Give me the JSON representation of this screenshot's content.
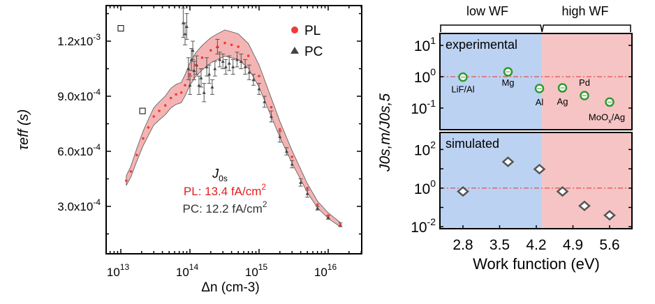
{
  "chart_data": [
    {
      "type": "scatter",
      "xlabel": "Δn (cm-3)",
      "ylabel": "τeff (s)",
      "xscale": "log",
      "xlim": [
        6000000000000.0,
        3e+16
      ],
      "ylim": [
        4e-05,
        0.00139
      ],
      "xticks": [
        {
          "v": 10000000000000.0,
          "label": "13"
        },
        {
          "v": 100000000000000.0,
          "label": "14"
        },
        {
          "v": 1000000000000000.0,
          "label": "15"
        },
        {
          "v": 1e+16,
          "label": "16"
        }
      ],
      "yticks": [
        {
          "v": 0.0012,
          "label": "1.2x10",
          "exp": "-3"
        },
        {
          "v": 0.0009,
          "label": "9.0x10",
          "exp": "-4"
        },
        {
          "v": 0.0006,
          "label": "6.0x10",
          "exp": "-4"
        },
        {
          "v": 0.0003,
          "label": "3.0x10",
          "exp": "-4"
        }
      ],
      "legend": {
        "placement": "top-right",
        "entries": [
          {
            "name": "PL",
            "marker": "circle",
            "color": "#ee3a3a"
          },
          {
            "name": "PC",
            "marker": "triangle",
            "color": "#444444"
          }
        ]
      },
      "annotation": {
        "title": "J",
        "title_sub": "0s",
        "pl_text": "PL: 13.4 fA/cm",
        "pc_text": "PC: 12.2 fA/cm",
        "sup": "2"
      },
      "series": [
        {
          "name": "PL",
          "color": "#ee3a3a",
          "band_color": "#f4b4b4",
          "uncertainty_fraction": 0.06,
          "points": [
            [
              12000000000000.0,
              0.00044
            ],
            [
              14000000000000.0,
              0.00049
            ],
            [
              17000000000000.0,
              0.00058
            ],
            [
              21000000000000.0,
              0.00067
            ],
            [
              25000000000000.0,
              0.00073
            ],
            [
              30000000000000.0,
              0.00079
            ],
            [
              36000000000000.0,
              0.00082
            ],
            [
              44000000000000.0,
              0.00085
            ],
            [
              53000000000000.0,
              0.00089
            ],
            [
              63000000000000.0,
              0.00091
            ],
            [
              75000000000000.0,
              0.00092
            ],
            [
              85000000000000.0,
              0.00096
            ],
            [
              100000000000000.0,
              0.00102
            ],
            [
              120000000000000.0,
              0.00107
            ],
            [
              150000000000000.0,
              0.00111
            ],
            [
              200000000000000.0,
              0.00115
            ],
            [
              250000000000000.0,
              0.00117
            ],
            [
              320000000000000.0,
              0.00119
            ],
            [
              400000000000000.0,
              0.00118
            ],
            [
              500000000000000.0,
              0.00117
            ],
            [
              700000000000000.0,
              0.00112
            ],
            [
              1000000000000000.0,
              0.00101
            ],
            [
              1500000000000000.0,
              0.00084
            ],
            [
              2000000000000000.0,
              0.00072
            ],
            [
              3000000000000000.0,
              0.00057
            ],
            [
              5000000000000000.0,
              0.0004
            ],
            [
              7000000000000000.0,
              0.00031
            ],
            [
              1e+16,
              0.00025
            ],
            [
              1.5e+16,
              0.0002
            ]
          ]
        },
        {
          "name": "PC",
          "color": "#444444",
          "points": [
            [
              80000000000000.0,
              0.0013,
              8e-05
            ],
            [
              85000000000000.0,
              0.00124,
              6e-05
            ],
            [
              90000000000000.0,
              0.00128,
              7e-05
            ],
            [
              95000000000000.0,
              0.00105,
              6e-05
            ],
            [
              100000000000000.0,
              0.00096,
              5e-05
            ],
            [
              105000000000000.0,
              0.0011,
              6e-05
            ],
            [
              110000000000000.0,
              0.00115,
              5e-05
            ],
            [
              115000000000000.0,
              0.00104,
              5e-05
            ],
            [
              125000000000000.0,
              0.00107,
              5e-05
            ],
            [
              135000000000000.0,
              0.00096,
              5e-05
            ],
            [
              145000000000000.0,
              0.001,
              5e-05
            ],
            [
              160000000000000.0,
              0.00092,
              5e-05
            ],
            [
              175000000000000.0,
              0.00106,
              5e-05
            ],
            [
              190000000000000.0,
              0.00102,
              5e-05
            ],
            [
              210000000000000.0,
              0.00095,
              4e-05
            ],
            [
              230000000000000.0,
              0.00105,
              4e-05
            ],
            [
              250000000000000.0,
              0.00117,
              4e-05
            ],
            [
              270000000000000.0,
              0.0011,
              4e-05
            ],
            [
              300000000000000.0,
              0.00109,
              4e-05
            ],
            [
              330000000000000.0,
              0.00106,
              4e-05
            ],
            [
              370000000000000.0,
              0.00108,
              4e-05
            ],
            [
              420000000000000.0,
              0.00106,
              4e-05
            ],
            [
              480000000000000.0,
              0.0011,
              4e-05
            ],
            [
              550000000000000.0,
              0.00109,
              4e-05
            ],
            [
              630000000000000.0,
              0.00106,
              4e-05
            ],
            [
              720000000000000.0,
              0.00103,
              4e-05
            ],
            [
              830000000000000.0,
              0.00099,
              3e-05
            ],
            [
              1000000000000000.0,
              0.00094,
              3e-05
            ],
            [
              1200000000000000.0,
              0.00087,
              3e-05
            ],
            [
              1500000000000000.0,
              0.00079,
              3e-05
            ],
            [
              2000000000000000.0,
              0.00068,
              3e-05
            ],
            [
              2500000000000000.0,
              0.0006,
              2e-05
            ],
            [
              3000000000000000.0,
              0.00053,
              2e-05
            ],
            [
              4000000000000000.0,
              0.00043,
              2e-05
            ],
            [
              5000000000000000.0,
              0.00037,
              2e-05
            ],
            [
              7000000000000000.0,
              0.00029,
              1e-05
            ],
            [
              1e+16,
              0.00024,
              1e-05
            ],
            [
              1.5e+16,
              0.0002,
              1e-05
            ]
          ]
        },
        {
          "name": "",
          "marker": "open-square",
          "points": [
            [
              10000000000000.0,
              0.00127
            ],
            [
              20600000000000.0,
              0.00082
            ]
          ]
        }
      ]
    },
    {
      "type": "scatter",
      "xlabel": "Work function (eV)",
      "ylabel": "J0s,m/J0s,5",
      "xlim": [
        2.35,
        6.05
      ],
      "xticks": [
        "2.8",
        "3.5",
        "4.2",
        "4.9",
        "5.6"
      ],
      "groups": [
        {
          "label": "low WF",
          "color": "#bcd2f2"
        },
        {
          "label": "high WF",
          "color": "#f6c4c4"
        }
      ],
      "group_boundary": 4.31,
      "reference_line": {
        "value": 1,
        "color": "#e05050",
        "style": "dash-dot"
      },
      "panels": [
        {
          "label": "experimental",
          "yscale": "log",
          "ylim": [
            0.0204,
            24
          ],
          "yticks": [
            {
              "base": "10",
              "exp": "1",
              "v": 10
            },
            {
              "base": "10",
              "exp": "0",
              "v": 1
            },
            {
              "base": "10",
              "exp": "-1",
              "v": 0.1
            }
          ],
          "marker": "green-circle",
          "marker_color": "#2e9a2e",
          "points": [
            {
              "x": 2.8,
              "y": 0.97,
              "label": "LiF/Al"
            },
            {
              "x": 3.66,
              "y": 1.43,
              "label": "Mg"
            },
            {
              "x": 4.26,
              "y": 0.42,
              "label": "Al"
            },
            {
              "x": 4.7,
              "y": 0.44,
              "label": "Ag"
            },
            {
              "x": 5.12,
              "y": 0.25,
              "label": "Pd"
            },
            {
              "x": 5.6,
              "y": 0.155,
              "label": "MoO",
              "label_sub": "x",
              "label_tail": "/Ag"
            }
          ]
        },
        {
          "label": "simulated",
          "yscale": "log",
          "ylim": [
            0.0079,
            760
          ],
          "yticks": [
            {
              "base": "10",
              "exp": "2",
              "v": 100
            },
            {
              "base": "10",
              "exp": "0",
              "v": 1
            },
            {
              "base": "10",
              "exp": "-2",
              "v": 0.01
            }
          ],
          "marker": "open-diamond",
          "points": [
            {
              "x": 2.8,
              "y": 0.67
            },
            {
              "x": 3.66,
              "y": 23
            },
            {
              "x": 4.26,
              "y": 9.6
            },
            {
              "x": 4.7,
              "y": 0.67
            },
            {
              "x": 5.12,
              "y": 0.12
            },
            {
              "x": 5.6,
              "y": 0.039
            }
          ]
        }
      ]
    }
  ]
}
